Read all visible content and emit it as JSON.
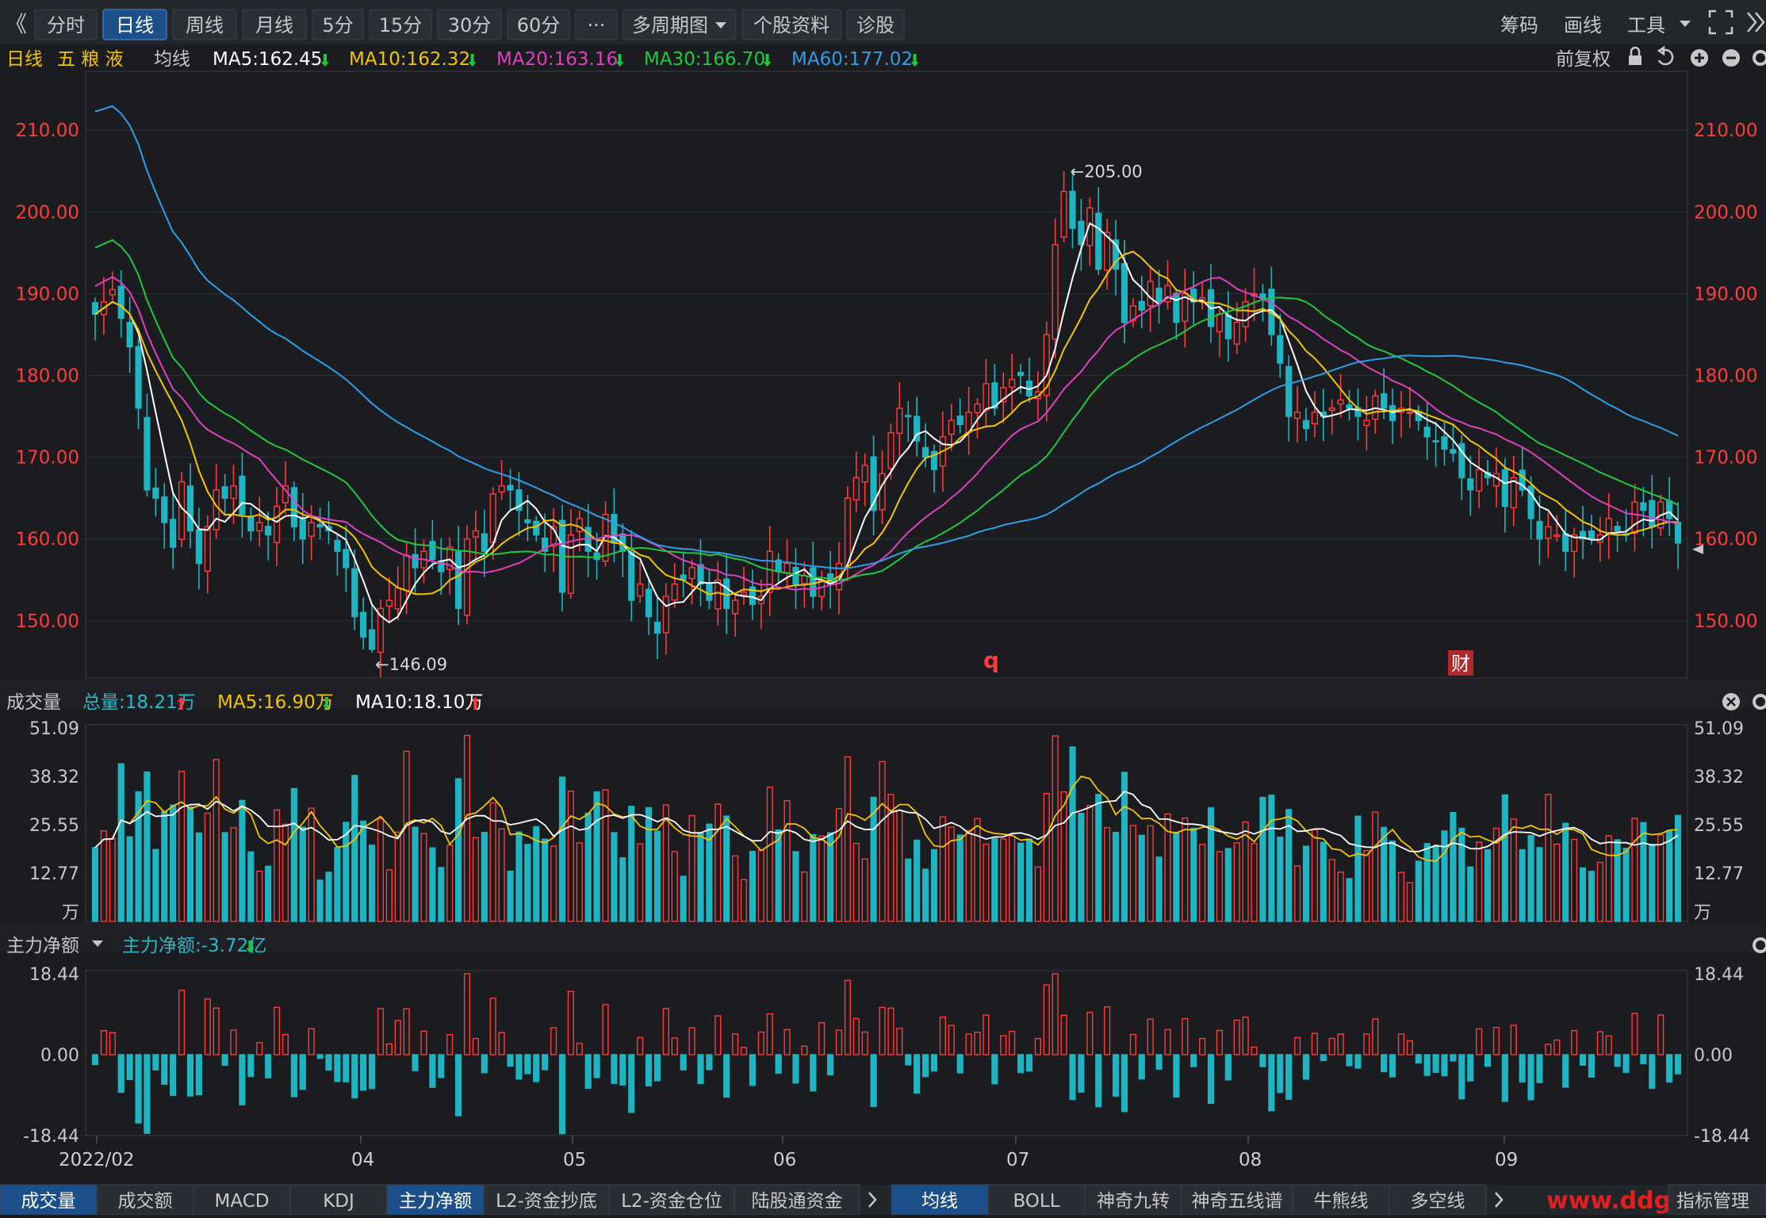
{
  "toolbar": {
    "collapse_glyph": "《",
    "period_tabs": [
      "分时",
      "日线",
      "周线",
      "月线",
      "5分",
      "15分",
      "30分",
      "60分",
      "···",
      "多周期图",
      "个股资料",
      "诊股"
    ],
    "active_tab": 1,
    "right_items": [
      "筹码",
      "画线",
      "工具"
    ]
  },
  "main_chart": {
    "period_label": "日线",
    "stock_name": "五 粮 液",
    "ma_title": "均线",
    "ma_items": [
      {
        "text": "MA5:162.45",
        "trend": "down",
        "color": "#ffffff"
      },
      {
        "text": "MA10:162.32",
        "trend": "down",
        "color": "#f5c400"
      },
      {
        "text": "MA20:163.16",
        "trend": "down",
        "color": "#e040c0"
      },
      {
        "text": "MA30:166.70",
        "trend": "down",
        "color": "#20c840"
      },
      {
        "text": "MA60:177.02",
        "trend": "down",
        "color": "#2f9ee8"
      }
    ],
    "adjust_label": "前复权",
    "price_labels": [
      "210.00",
      "200.00",
      "190.00",
      "180.00",
      "170.00",
      "160.00",
      "150.00"
    ],
    "high_note": "205.00",
    "low_note": "146.09",
    "marker_q": "q",
    "marker_cai": "财"
  },
  "volume_panel": {
    "title": "成交量",
    "items": [
      {
        "text": "总量:18.21万",
        "trend": "up",
        "color": "#2ab7c6"
      },
      {
        "text": "MA5:16.90万",
        "trend": "down",
        "color": "#f5c400"
      },
      {
        "text": "MA10:18.10万",
        "trend": "up",
        "color": "#ffffff"
      }
    ],
    "axis_labels": [
      "51.09",
      "38.32",
      "25.55",
      "12.77"
    ],
    "unit": "万"
  },
  "flow_panel": {
    "title": "主力净额",
    "items": [
      {
        "text": "主力净额:-3.72亿",
        "trend": "down",
        "color": "#2ab7c6"
      }
    ],
    "axis_labels": [
      "18.44",
      "0.00",
      "-18.44"
    ]
  },
  "x_axis_labels": [
    "2022/02",
    "04",
    "05",
    "06",
    "07",
    "08",
    "09"
  ],
  "bottom_tabs_left": [
    "成交量",
    "成交额",
    "MACD",
    "KDJ",
    "主力净额",
    "L2-资金抄底",
    "L2-资金仓位",
    "陆股通资金"
  ],
  "bottom_tabs_right": [
    "均线",
    "BOLL",
    "神奇九转",
    "神奇五线谱",
    "牛熊线",
    "多空线"
  ],
  "bottom_active_left": [
    0,
    4
  ],
  "bottom_active_right": [
    0
  ],
  "bottom_manage": "指标管理",
  "watermark": "www.ddg",
  "colors": {
    "up": "#ff3b3b",
    "down": "#1fb4c2",
    "price_axis": "#ff3b3b",
    "active_tab_bg": "#1c4f8a"
  },
  "chart_data": {
    "type": "candlestick",
    "title": "",
    "xlabel": "",
    "ylabel": "",
    "x_ticks": [
      "2022/02",
      "04",
      "05",
      "06",
      "07",
      "08",
      "09"
    ],
    "price_ylim": [
      143,
      217
    ],
    "volume_ylim": [
      0,
      51.09
    ],
    "flow_ylim": [
      -18.44,
      18.44
    ],
    "price_high": 205.0,
    "price_low": 146.09,
    "close_series": [
      187.5,
      189.0,
      190.5,
      187.0,
      183.5,
      176.0,
      166.0,
      165.0,
      162.0,
      159.0,
      167.0,
      161.0,
      157.0,
      161.5,
      166.0,
      165.0,
      166.5,
      163.0,
      161.0,
      162.0,
      160.5,
      164.0,
      166.5,
      161.5,
      160.0,
      162.0,
      161.5,
      161.0,
      158.5,
      156.5,
      150.5,
      148.0,
      146.5,
      151.5,
      152.5,
      154.0,
      158.0,
      156.5,
      158.5,
      157.5,
      156.0,
      159.0,
      151.5,
      160.0,
      161.0,
      158.5,
      165.5,
      166.5,
      166.0,
      163.5,
      162.0,
      160.5,
      158.5,
      161.5,
      153.5,
      160.5,
      162.5,
      158.5,
      157.5,
      163.0,
      159.5,
      158.5,
      152.5,
      154.5,
      150.5,
      148.5,
      153.0,
      154.5,
      155.0,
      156.5,
      154.5,
      152.5,
      155.0,
      151.5,
      152.5,
      153.5,
      152.0,
      153.0,
      158.5,
      156.0,
      157.0,
      154.5,
      155.5,
      153.0,
      155.0,
      154.5,
      157.0,
      165.0,
      167.5,
      169.0,
      163.5,
      168.0,
      173.0,
      176.0,
      175.0,
      172.0,
      170.0,
      168.5,
      172.5,
      174.5,
      174.0,
      175.5,
      176.5,
      179.0,
      176.0,
      178.5,
      179.5,
      180.0,
      177.5,
      178.0,
      185.0,
      196.0,
      202.5,
      198.0,
      196.0,
      200.5,
      193.0,
      197.5,
      193.0,
      186.5,
      188.5,
      188.0,
      191.5,
      189.0,
      191.0,
      186.5,
      190.0,
      189.0,
      189.5,
      186.0,
      187.5,
      184.5,
      186.5,
      189.0,
      190.0,
      189.5,
      185.0,
      181.5,
      175.0,
      175.5,
      173.5,
      175.5,
      175.0,
      176.0,
      177.0,
      176.0,
      175.0,
      174.5,
      177.5,
      176.0,
      174.5,
      176.0,
      175.5,
      174.5,
      172.5,
      172.0,
      171.0,
      170.5,
      167.5,
      166.0,
      168.5,
      167.5,
      168.0,
      164.0,
      167.5,
      166.0,
      162.5,
      160.0,
      161.5,
      160.5,
      158.5,
      160.5,
      160.0,
      160.0,
      160.5,
      162.5,
      161.0,
      160.5,
      164.5,
      163.5,
      161.5,
      164.5,
      162.5,
      159.5
    ]
  }
}
